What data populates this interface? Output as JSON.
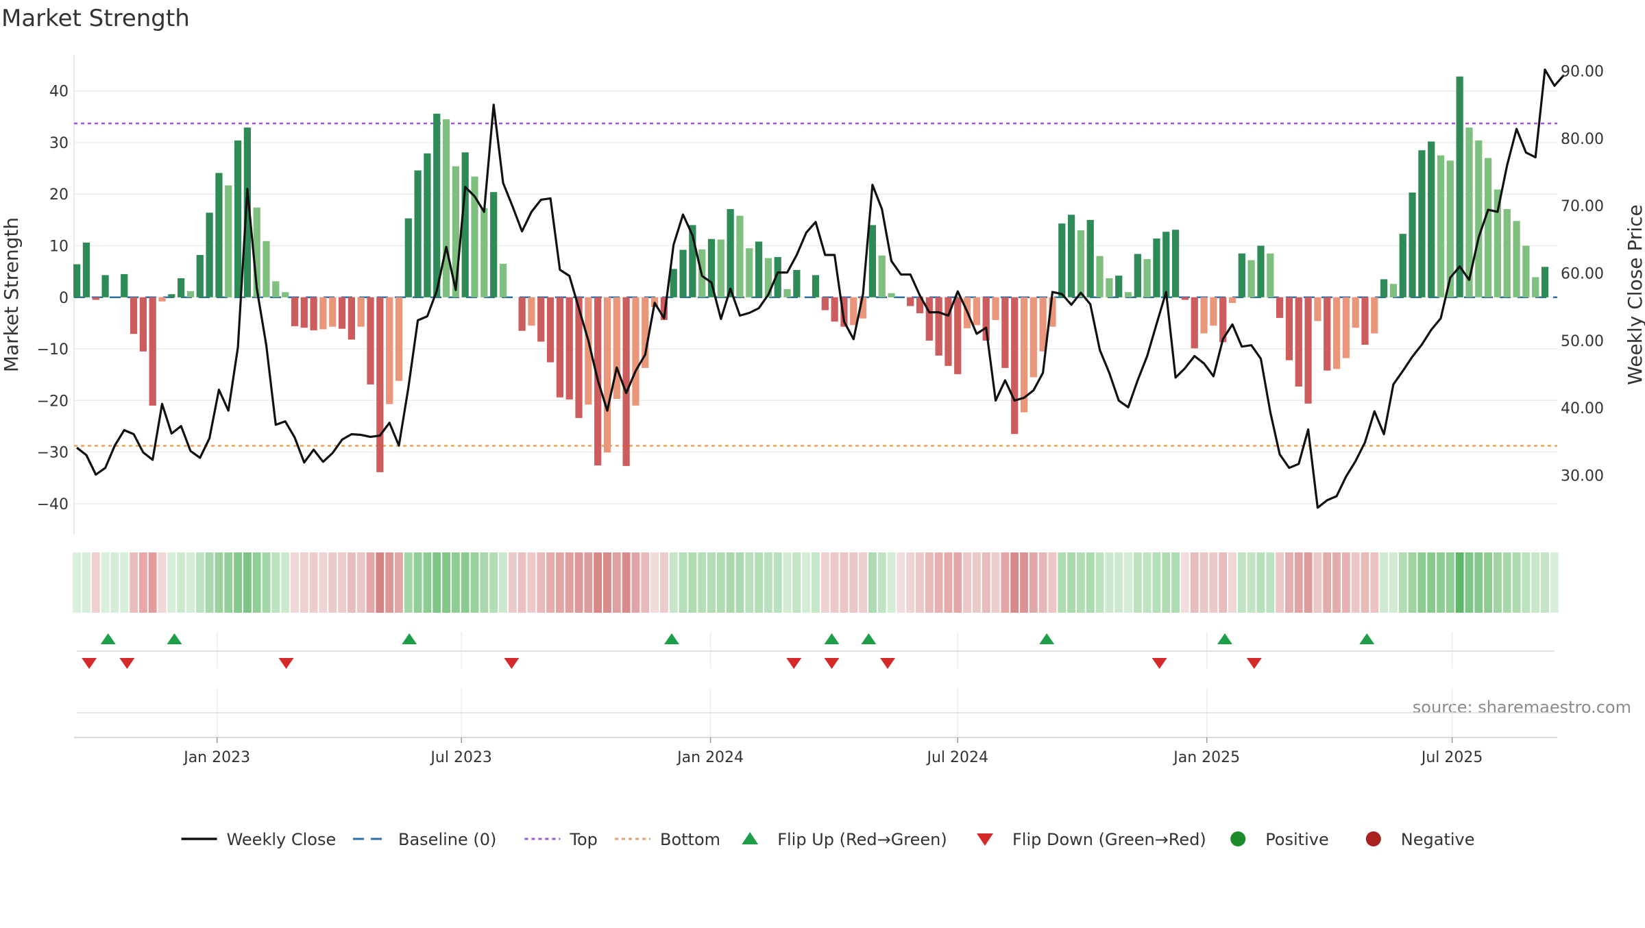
{
  "chart_data": {
    "type": "bar",
    "title": "Market Strength",
    "ylabel_left": "Market Strength",
    "ylabel_right": "Weekly Close Price",
    "source": "source: sharemaestro.com",
    "ylim_left": [
      -46,
      47
    ],
    "ylim_right": [
      21.2,
      92.4
    ],
    "yticks_left": [
      "40",
      "30",
      "20",
      "10",
      "0",
      "−10",
      "−20",
      "−30",
      "−40"
    ],
    "yticks_left_values": [
      40,
      30,
      20,
      10,
      0,
      -10,
      -20,
      -30,
      -40
    ],
    "yticks_right": [
      "90.00",
      "80.00",
      "70.00",
      "60.00",
      "50.00",
      "40.00",
      "30.00"
    ],
    "yticks_right_values": [
      90,
      80,
      70,
      60,
      50,
      40,
      30
    ],
    "x_ticks": [
      {
        "label": "Jan 2023",
        "week": 14.8
      },
      {
        "label": "Jul 2023",
        "week": 40.6
      },
      {
        "label": "Jan 2024",
        "week": 66.9
      },
      {
        "label": "Jul 2024",
        "week": 93.0
      },
      {
        "label": "Jan 2025",
        "week": 119.3
      },
      {
        "label": "Jul 2025",
        "week": 145.2
      }
    ],
    "top_line": 33.7,
    "bottom_line": -28.8,
    "strength": [
      6.4,
      10.6,
      -0.5,
      4.3,
      0,
      4.5,
      -7.1,
      -10.5,
      -21,
      -0.8,
      0.6,
      3.7,
      1.2,
      8.2,
      16.4,
      24.1,
      21.7,
      30.4,
      32.9,
      17.4,
      10.9,
      3.1,
      1.0,
      -5.6,
      -5.9,
      -6.4,
      -6.2,
      -5.7,
      -6.1,
      -8.2,
      -5.7,
      -16.9,
      -33.9,
      -20.7,
      -16.2,
      15.3,
      24.6,
      27.9,
      35.6,
      34.5,
      25.4,
      28.1,
      23.4,
      17.3,
      20.4,
      6.5,
      0,
      -6.5,
      -5.5,
      -8.6,
      -12.6,
      -19.4,
      -19.8,
      -23.4,
      -20.8,
      -32.6,
      -30.1,
      -19.7,
      -32.7,
      -21,
      -13.7,
      -1.9,
      -4.4,
      5.5,
      9.2,
      14,
      9.3,
      11.3,
      11.2,
      17.1,
      15.8,
      9.5,
      10.8,
      7.6,
      7.8,
      1.6,
      5.3,
      0,
      4.3,
      -2.5,
      -4.7,
      -5.7,
      -5.4,
      -4.1,
      14,
      8.1,
      0.8,
      0,
      -1.7,
      -3.1,
      -8.4,
      -11.3,
      -13.3,
      -14.9,
      -6,
      -5.4,
      -8.4,
      -4.4,
      -13.7,
      -26.5,
      -22.3,
      -15.5,
      -10.5,
      -5.7,
      14.3,
      16,
      13,
      15,
      8,
      3.7,
      4.2,
      1,
      8.4,
      7.4,
      11.4,
      12.7,
      13.1,
      -0.5,
      -9.9,
      -7,
      -5.5,
      -8.7,
      -1.1,
      8.5,
      7.2,
      10,
      8.5,
      -4,
      -12.2,
      -17.3,
      -20.6,
      -4.6,
      -14.2,
      -13.9,
      -11.8,
      -5.9,
      -9.2,
      -7,
      3.5,
      2.6,
      12.3,
      20.3,
      28.5,
      30.2,
      27.5,
      26.5,
      42.8,
      32.9,
      30.4,
      27,
      20.9,
      17.1,
      14.8,
      10,
      3.9,
      5.9,
      0
    ],
    "weekly_close": [
      34.1,
      33,
      30.1,
      31.1,
      34.4,
      36.7,
      36.1,
      33.4,
      32.3,
      40.6,
      36.2,
      37.3,
      33.6,
      32.6,
      35.5,
      42.7,
      39.6,
      49,
      72.5,
      57.7,
      49.3,
      37.5,
      38,
      35.6,
      31.9,
      33.8,
      32,
      33.3,
      35.3,
      36.1,
      36,
      35.7,
      35.9,
      37.8,
      34.4,
      43,
      53,
      53.6,
      57.4,
      63.9,
      57.5,
      72.8,
      71.4,
      69.1,
      85,
      73.4,
      69.9,
      66.2,
      69.1,
      70.9,
      71.1,
      60.5,
      59.6,
      54.8,
      50,
      44.1,
      39.6,
      46,
      42.2,
      45.5,
      47.9,
      55.6,
      53.3,
      64.2,
      68.7,
      65.6,
      59.6,
      58.6,
      53.2,
      57.7,
      53.7,
      54.1,
      54.8,
      56.8,
      60.1,
      60.1,
      62.7,
      66,
      67.6,
      62.7,
      62.7,
      52.8,
      50.2,
      56.9,
      73.1,
      69.5,
      61.8,
      59.8,
      59.8,
      56.7,
      54.2,
      54.2,
      53.7,
      57.3,
      54.3,
      51,
      51.9,
      41.1,
      44.1,
      41.1,
      41.5,
      42.6,
      45.2,
      57.2,
      56.9,
      55.3,
      57.1,
      55.4,
      48.6,
      45.2,
      41.1,
      40.1,
      44.1,
      47.7,
      52.5,
      57.2,
      44.5,
      45.9,
      47.7,
      46.6,
      44.7,
      50.2,
      52.4,
      49.1,
      49.3,
      47.3,
      39.4,
      33.1,
      31.1,
      31.7,
      36.8,
      25.2,
      26.3,
      26.9,
      29.8,
      32.1,
      34.9,
      39.5,
      36.1,
      43.5,
      45.5,
      47.6,
      49.4,
      51.6,
      53.3,
      59.3,
      61,
      59,
      65.3,
      69.4,
      69.1,
      76,
      81.4,
      77.9,
      77.2,
      90.2,
      87.8,
      89.4
    ],
    "tile_colors": [
      "#d9f0dd",
      "#d6eede",
      "#eed2d2",
      "#d8efdb",
      "#d4ecd8",
      "#d8efdb",
      "#ebbebe",
      "#e8a8a8",
      "#e59c9c",
      "#f0d6d6",
      "#d7eed9",
      "#cdeacf",
      "#d3edd5",
      "#bce3c0",
      "#a8d8ab",
      "#99d29e",
      "#93cf99",
      "#86c98c",
      "#7ec585",
      "#90ce96",
      "#a3d6a7",
      "#bce3c0",
      "#c9e8cc",
      "#f0d6d6",
      "#eed2d2",
      "#edcccc",
      "#efd4d4",
      "#ebcaca",
      "#edcbcb",
      "#e8bdbd",
      "#eac6c6",
      "#e4a6a6",
      "#d48484",
      "#dc9898",
      "#e2a7a7",
      "#a4d7a8",
      "#92ce97",
      "#8ccc92",
      "#7ec686",
      "#81c788",
      "#8fcd95",
      "#8acb90",
      "#97d19b",
      "#a8d8ab",
      "#b2deb6",
      "#c8e7cb",
      "#eacbcb",
      "#ebc0c0",
      "#edc8c8",
      "#e9b9b9",
      "#e6acac",
      "#e2a3a3",
      "#e0a0a0",
      "#de9898",
      "#df9c9c",
      "#d88686",
      "#d98a8a",
      "#dea0a0",
      "#d88a8a",
      "#e1a4a4",
      "#e7b9b9",
      "#f0dada",
      "#ebcbcb",
      "#c7e6c9",
      "#b5dfb8",
      "#addcb1",
      "#b4deb7",
      "#b0ddb4",
      "#b1ddb4",
      "#a8d8ac",
      "#abdaae",
      "#b8e1bb",
      "#b2deb5",
      "#bae1bd",
      "#bae1bd",
      "#d2ecd4",
      "#c3e5c6",
      "#d5edd7",
      "#c6e7c8",
      "#eed1d1",
      "#ecc8c8",
      "#ebc5c5",
      "#ebc6c6",
      "#edcdcd",
      "#aedcb2",
      "#c0e4c3",
      "#d5edd7",
      "#f1dddd",
      "#eed3d3",
      "#ecc9c9",
      "#e8baba",
      "#e7b1b1",
      "#e5abab",
      "#e2a6a6",
      "#ebc7c7",
      "#ebc9c9",
      "#e8bbbb",
      "#edcccc",
      "#e3a6a6",
      "#d78989",
      "#da9292",
      "#e1a8a8",
      "#e7b6b6",
      "#ebc6c6",
      "#addcb0",
      "#a9d9ad",
      "#b0ddb4",
      "#abdaae",
      "#bde3c0",
      "#cbe9cd",
      "#cde9cf",
      "#d5edd7",
      "#bde2c0",
      "#c0e4c3",
      "#b3deb6",
      "#afdcb3",
      "#aedcb1",
      "#f1dddd",
      "#e8bdbd",
      "#ebc6c6",
      "#ecc9c9",
      "#e8bcbc",
      "#f0d7d7",
      "#c0e4c3",
      "#c2e4c5",
      "#b7e0ba",
      "#bce3c0",
      "#ecc8c8",
      "#e4aeae",
      "#e1a3a3",
      "#de9b9b",
      "#ebc7c7",
      "#e4abab",
      "#e4adad",
      "#e7b2b2",
      "#ebc6c6",
      "#e8baba",
      "#ebc3c3",
      "#cde9cf",
      "#d0ebd2",
      "#b1ddb5",
      "#9dd4a1",
      "#8ccc92",
      "#88ca8e",
      "#8ecd94",
      "#90ce96",
      "#5fb768",
      "#7ec586",
      "#85c88b",
      "#8ecc93",
      "#9dd4a1",
      "#a6d8aa",
      "#acdbb0",
      "#bbe2be",
      "#c8e7cb",
      "#c3e5c6",
      "#d8efdb"
    ],
    "flip_up_weeks": [
      3.3,
      10.3,
      35.1,
      62.8,
      79.7,
      83.6,
      102.4,
      121.2,
      136.2
    ],
    "flip_down_weeks": [
      1.3,
      5.3,
      22.1,
      45.9,
      75.7,
      79.7,
      85.6,
      114.3,
      124.3
    ],
    "legend": [
      {
        "label": "Weekly Close",
        "symbol": "line-solid",
        "color": "#111111"
      },
      {
        "label": "Baseline (0)",
        "symbol": "line-dashed",
        "color": "#2f6ea5"
      },
      {
        "label": "Top",
        "symbol": "line-dotted",
        "color": "#9b59d0"
      },
      {
        "label": "Bottom",
        "symbol": "line-dotted",
        "color": "#e6a45a"
      },
      {
        "label": "Flip Up (Red→Green)",
        "symbol": "triangle-up",
        "color": "#1f9e4a"
      },
      {
        "label": "Flip Down (Green→Red)",
        "symbol": "triangle-down",
        "color": "#d42a2a"
      },
      {
        "label": "Positive",
        "symbol": "circle",
        "color": "#1e8a2a"
      },
      {
        "label": "Negative",
        "symbol": "circle",
        "color": "#a82020"
      }
    ],
    "colors": {
      "pos_strong": "#2e8b57",
      "pos_light": "#7fbf7f",
      "neg_strong": "#cd5c5c",
      "neg_light": "#e9967a",
      "close_line": "#111111",
      "baseline": "#2f6ea5",
      "top": "#9b59d0",
      "bottom": "#e6a45a",
      "flip_up": "#1f9e4a",
      "flip_down": "#d42a2a"
    }
  }
}
